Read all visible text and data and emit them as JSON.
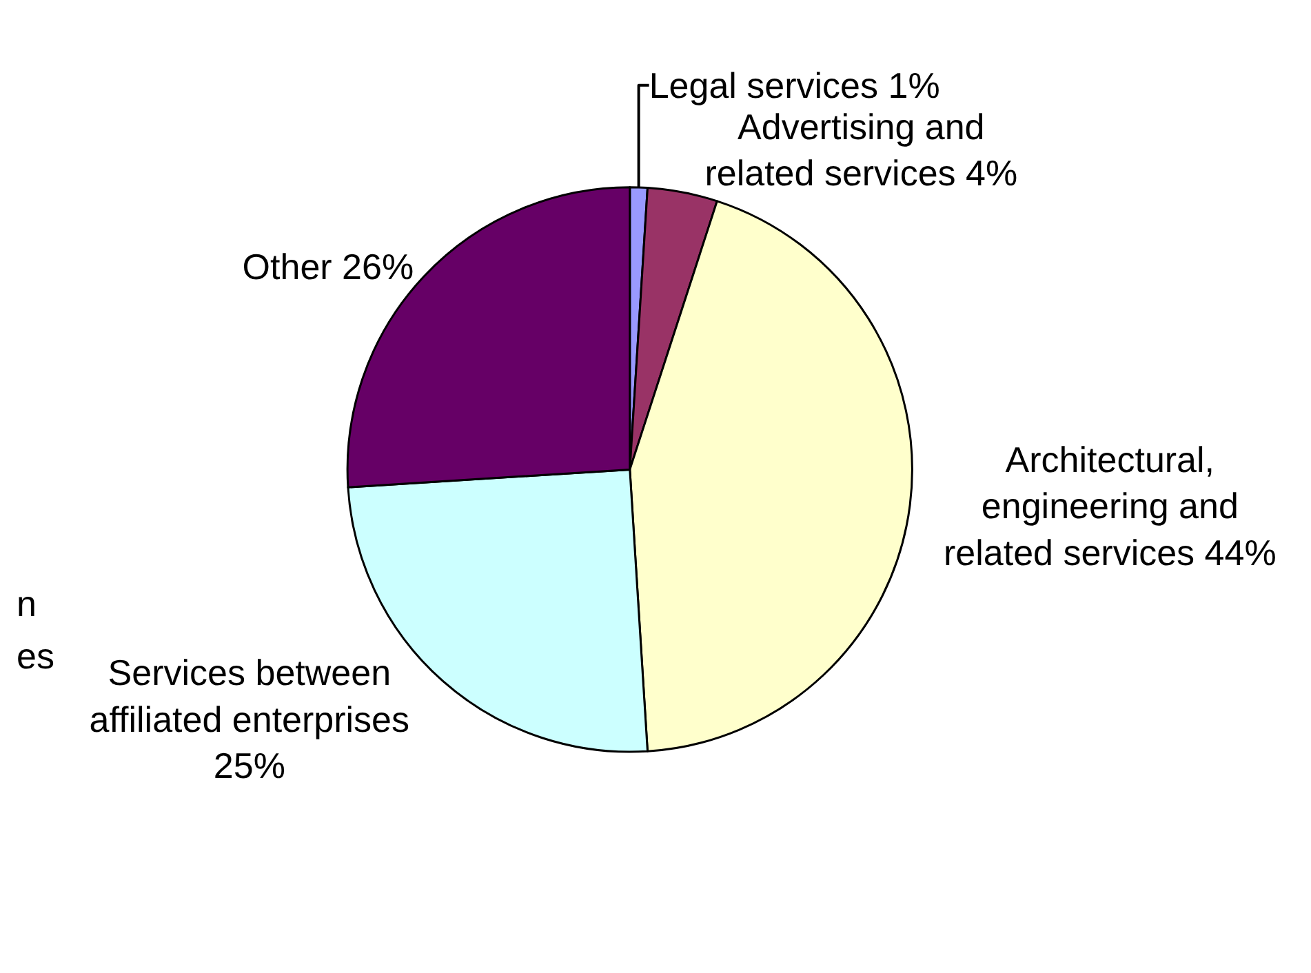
{
  "chart_data": {
    "type": "pie",
    "categories": [
      "Legal services",
      "Advertising and related services",
      "Architectural, engineering and related services",
      "Services between affiliated enterprises",
      "Other"
    ],
    "values": [
      1,
      4,
      44,
      25,
      26
    ],
    "value_labels": [
      "1%",
      "4%",
      "44%",
      "25%",
      "26%"
    ],
    "colors": [
      "#9999ff",
      "#993366",
      "#ffffcc",
      "#ccffff",
      "#660066"
    ],
    "annotations": [
      "n",
      "es"
    ],
    "legend": false
  }
}
